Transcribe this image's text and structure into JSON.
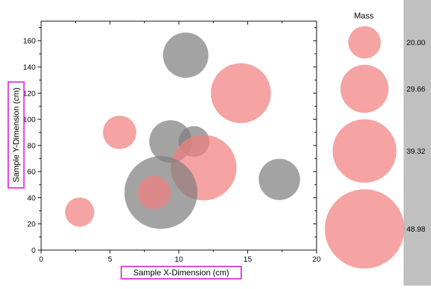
{
  "chart_data": {
    "type": "scatter",
    "subtype": "bubble",
    "title": "",
    "xlabel": "Sample X-Dimension (cm)",
    "ylabel": "Sample Y-Dimension (cm)",
    "xlim": [
      0,
      20
    ],
    "ylim": [
      0,
      175
    ],
    "x_ticks": [
      0,
      5,
      10,
      15,
      20
    ],
    "y_ticks": [
      0,
      20,
      40,
      60,
      80,
      100,
      120,
      140,
      160
    ],
    "x_tick_labels": [
      "0",
      "5",
      "10",
      "15",
      "20"
    ],
    "y_tick_labels": [
      "0",
      "20",
      "40",
      "60",
      "80",
      "100",
      "120",
      "140",
      "160"
    ],
    "grid": false,
    "colors": {
      "pink": "#F28080",
      "gray": "#7F7F7F",
      "axis_label_box": "#E040E0",
      "legend_panel": "#C0C0C0"
    },
    "opacity": 0.72,
    "points": [
      {
        "x": 10.5,
        "y": 149,
        "mass": 28.0,
        "color": "gray"
      },
      {
        "x": 14.5,
        "y": 120,
        "mass": 37.0,
        "color": "pink"
      },
      {
        "x": 5.7,
        "y": 90,
        "mass": 20.6,
        "color": "pink"
      },
      {
        "x": 9.4,
        "y": 83,
        "mass": 26.3,
        "color": "gray"
      },
      {
        "x": 11.1,
        "y": 83,
        "mass": 19.0,
        "color": "gray"
      },
      {
        "x": 11.8,
        "y": 63,
        "mass": 40.5,
        "color": "pink"
      },
      {
        "x": 17.3,
        "y": 54,
        "mass": 25.5,
        "color": "gray"
      },
      {
        "x": 8.7,
        "y": 44,
        "mass": 45.0,
        "color": "gray"
      },
      {
        "x": 8.2,
        "y": 44,
        "mass": 20.5,
        "color": "pink"
      },
      {
        "x": 2.8,
        "y": 29,
        "mass": 18.0,
        "color": "pink"
      }
    ],
    "legend": {
      "title": "Mass",
      "placement": "right",
      "items": [
        {
          "mass": 20.0,
          "label": "20.00"
        },
        {
          "mass": 29.66,
          "label": "29.66"
        },
        {
          "mass": 39.32,
          "label": "39.32"
        },
        {
          "mass": 48.98,
          "label": "48.98"
        }
      ]
    }
  }
}
